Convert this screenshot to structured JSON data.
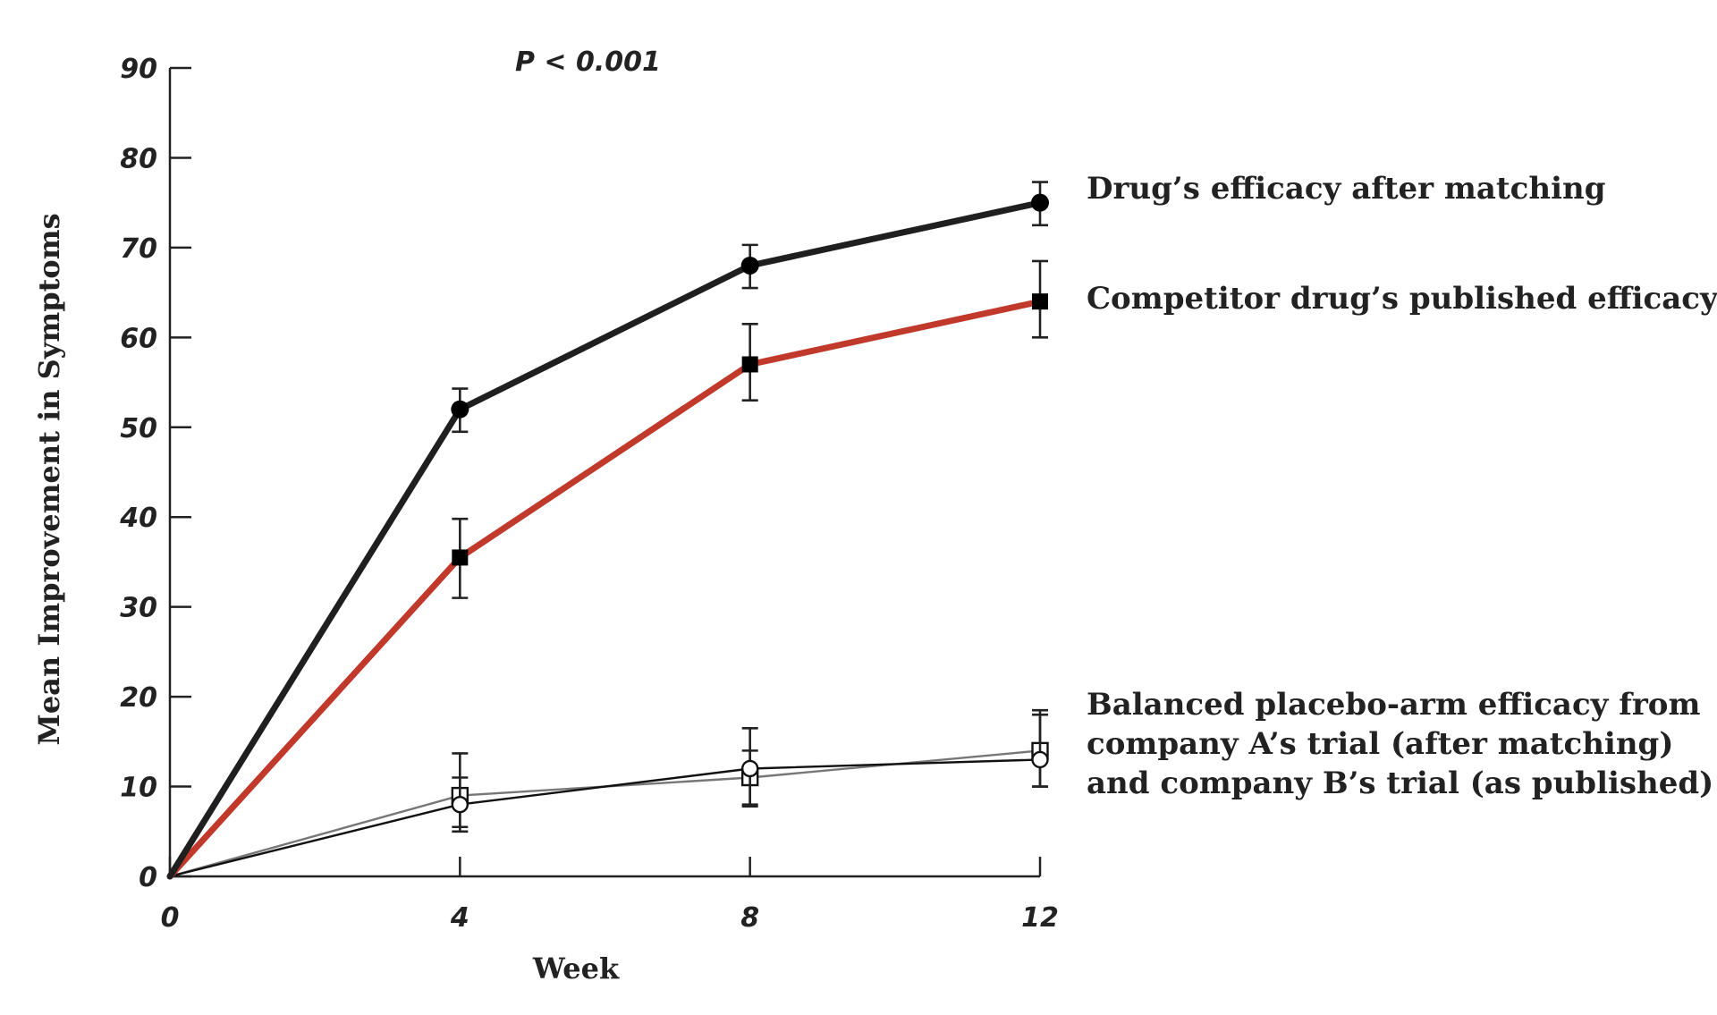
{
  "colors": {
    "axis": "#222222",
    "drug": "#1f1f1f",
    "competitor": "#c0392b",
    "placebo_a": "#111111",
    "placebo_b": "#777777"
  },
  "chart_data": {
    "type": "line",
    "title": "",
    "annotation": "P < 0.001",
    "xlabel": "Week",
    "ylabel": "Mean Improvement in Symptoms",
    "x": [
      0,
      4,
      8,
      12
    ],
    "xlim": [
      0,
      12
    ],
    "ylim": [
      0,
      90
    ],
    "xticks": [
      "0",
      "4",
      "8",
      "12"
    ],
    "yticks": [
      "0",
      "10",
      "20",
      "30",
      "40",
      "50",
      "60",
      "70",
      "80",
      "90"
    ],
    "grid": false,
    "series": [
      {
        "name": "Drug's efficacy after matching",
        "values": [
          0,
          52,
          68,
          75
        ],
        "error_low": [
          null,
          49.5,
          65.5,
          72.5
        ],
        "error_high": [
          null,
          54.3,
          70.3,
          77.3
        ],
        "marker": "filled-circle",
        "color": "#1f1f1f",
        "line_width": "thick"
      },
      {
        "name": "Competitor drug's published efficacy",
        "values": [
          0,
          35.5,
          57,
          64
        ],
        "error_low": [
          null,
          31,
          53,
          60
        ],
        "error_high": [
          null,
          39.8,
          61.5,
          68.5
        ],
        "marker": "filled-square",
        "color": "#c0392b",
        "line_width": "thick"
      },
      {
        "name": "Placebo arm, company A's trial (after matching)",
        "values": [
          0,
          8,
          12,
          13
        ],
        "error_low": [
          null,
          5,
          8,
          10
        ],
        "error_high": [
          null,
          11,
          16.5,
          18
        ],
        "marker": "open-circle",
        "color": "#111111",
        "line_width": "thin"
      },
      {
        "name": "Placebo arm, company B's trial (as published)",
        "values": [
          0,
          9,
          11,
          14
        ],
        "error_low": [
          null,
          5.5,
          7.8,
          10
        ],
        "error_high": [
          null,
          13.7,
          14,
          18.5
        ],
        "marker": "open-square",
        "color": "#777777",
        "line_width": "thin"
      }
    ],
    "legend": {
      "placement": "right",
      "labels": [
        {
          "series_index": 0,
          "lines": [
            "Drug’s efficacy after matching"
          ]
        },
        {
          "series_index": 1,
          "lines": [
            "Competitor drug’s published efficacy"
          ]
        },
        {
          "series_index": 2,
          "lines": [
            "Balanced placebo-arm efficacy from",
            "company A’s trial (after matching)",
            "and company B’s trial (as published)"
          ]
        }
      ]
    }
  }
}
